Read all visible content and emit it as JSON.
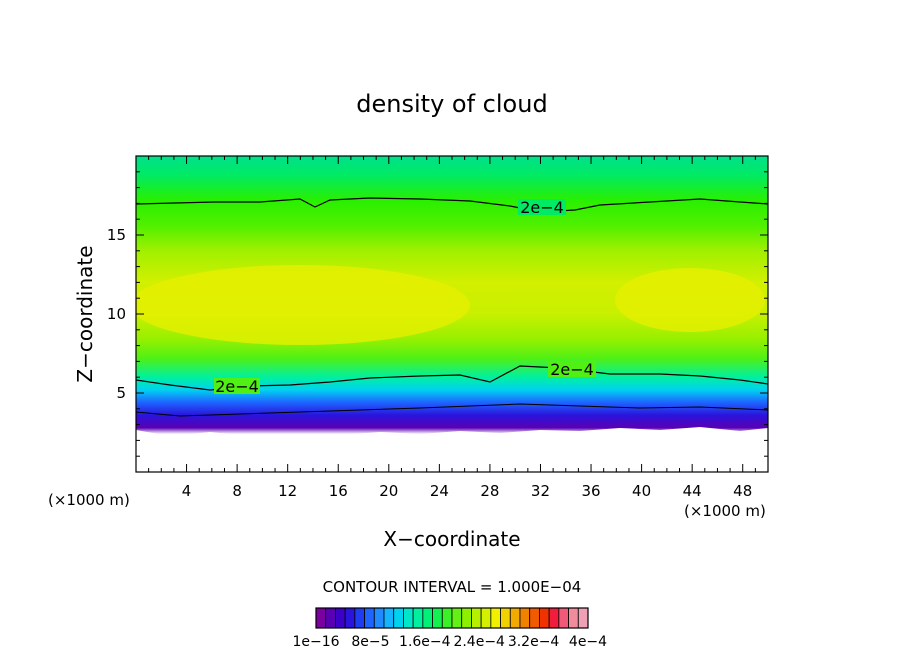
{
  "chart_data": {
    "type": "heatmap",
    "title": "density of cloud",
    "xlabel": "X−coordinate",
    "ylabel": "Z−coordinate",
    "x_unit_left": "(×1000 m)",
    "x_unit_right": "(×1000 m)",
    "xlim": [
      0,
      50
    ],
    "ylim": [
      0,
      20
    ],
    "x_ticks": [
      4,
      8,
      12,
      16,
      20,
      24,
      28,
      32,
      36,
      40,
      44,
      48
    ],
    "x_tick_labels": [
      "4",
      "8",
      "12",
      "16",
      "20",
      "24",
      "28",
      "32",
      "36",
      "40",
      "44",
      "48"
    ],
    "y_ticks": [
      5,
      10,
      15
    ],
    "y_tick_labels": [
      "5",
      "10",
      "15"
    ],
    "contour_interval_text": "CONTOUR INTERVAL = 1.000E−04",
    "contour_labels": [
      "2e−4",
      "2e−4",
      "2e−4"
    ],
    "colorbar": {
      "colors": [
        "#7a00a0",
        "#5a00b4",
        "#3c00c8",
        "#2a14dc",
        "#1e3cf0",
        "#1e64ff",
        "#1e8cff",
        "#14b4ff",
        "#00d2f0",
        "#00e6c8",
        "#00f0a0",
        "#00f078",
        "#14f050",
        "#3cf028",
        "#64f014",
        "#8cf000",
        "#b4f000",
        "#d2f000",
        "#f0f000",
        "#f0d200",
        "#f0aa00",
        "#f08200",
        "#f05a00",
        "#f03200",
        "#f01e3c",
        "#f05a78",
        "#f08c9c",
        "#f0a0b4"
      ],
      "labels": [
        "1e−16",
        "8e−5",
        "1.6e−4",
        "2.4e−4",
        "3.2e−4",
        "4e−4"
      ]
    }
  }
}
